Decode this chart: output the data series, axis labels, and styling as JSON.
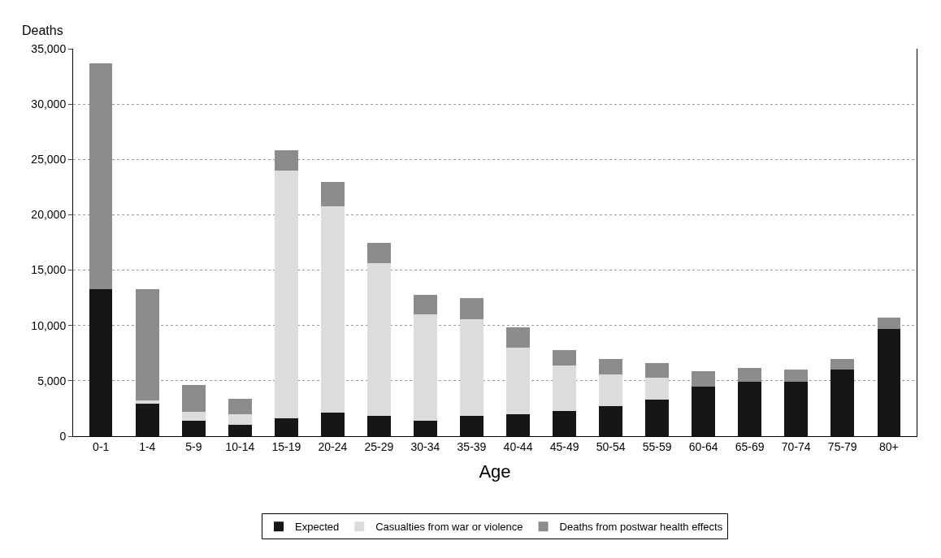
{
  "chart_data": {
    "type": "bar",
    "stacked": true,
    "ylabel": "Deaths",
    "xlabel": "Age",
    "categories": [
      "0-1",
      "1-4",
      "5-9",
      "10-14",
      "15-19",
      "20-24",
      "25-29",
      "30-34",
      "35-39",
      "40-44",
      "45-49",
      "50-54",
      "55-59",
      "60-64",
      "65-69",
      "70-74",
      "75-79",
      "80+"
    ],
    "series": [
      {
        "name": "Expected",
        "color": "#161616",
        "values": [
          13300,
          2900,
          1400,
          1000,
          1600,
          2100,
          1800,
          1400,
          1800,
          2000,
          2300,
          2700,
          3300,
          4500,
          4900,
          4900,
          6000,
          9700
        ]
      },
      {
        "name": "Casualties from war or violence",
        "color": "#dcdcdc",
        "values": [
          0,
          300,
          800,
          1000,
          22400,
          18700,
          13800,
          9600,
          8800,
          6000,
          4100,
          2900,
          2000,
          0,
          0,
          0,
          0,
          0
        ]
      },
      {
        "name": "Deaths from postwar health effects",
        "color": "#8c8c8c",
        "values": [
          20400,
          10100,
          2400,
          1400,
          1800,
          2200,
          1900,
          1800,
          1900,
          1800,
          1400,
          1400,
          1300,
          1400,
          1300,
          1100,
          1000,
          1000
        ]
      }
    ],
    "ylim": [
      0,
      35000
    ],
    "yticks": [
      0,
      {
        "value": 5000,
        "label": "5,000"
      },
      {
        "value": 10000,
        "label": "10,000"
      },
      {
        "value": 15000,
        "label": "15,000"
      },
      {
        "value": 20000,
        "label": "20,000"
      },
      {
        "value": 25000,
        "label": "25,000"
      },
      {
        "value": 30000,
        "label": "30,000"
      },
      {
        "value": 35000,
        "label": "35,000"
      }
    ],
    "grid": "y",
    "legend": "bottom"
  }
}
